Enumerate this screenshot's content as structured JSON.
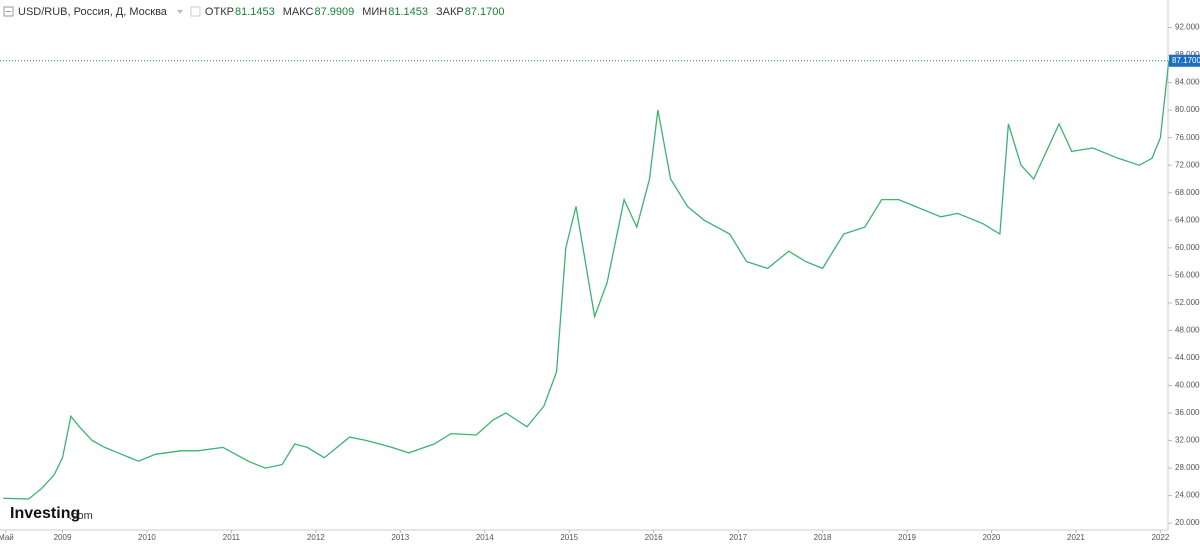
{
  "chart_data": {
    "type": "line",
    "title": "USD/RUB, Россия, Д, Москва",
    "header": [
      [
        "ОТКР",
        "81.1453"
      ],
      [
        "МАКС",
        "87.9909"
      ],
      [
        "МИН",
        "81.1453"
      ],
      [
        "ЗАКР",
        "87.1700"
      ]
    ],
    "watermark": [
      "Investing",
      ".com"
    ],
    "last": {
      "value": 87.17,
      "label": "87.1700"
    },
    "series": [
      {
        "name": "USD/RUB",
        "color": "#3cb371",
        "x": [
          2008.3,
          2008.6,
          2008.75,
          2008.9,
          2009.0,
          2009.1,
          2009.2,
          2009.35,
          2009.5,
          2009.7,
          2009.9,
          2010.1,
          2010.4,
          2010.6,
          2010.9,
          2011.2,
          2011.4,
          2011.6,
          2011.75,
          2011.9,
          2012.1,
          2012.4,
          2012.6,
          2012.9,
          2013.1,
          2013.4,
          2013.6,
          2013.9,
          2014.1,
          2014.25,
          2014.5,
          2014.7,
          2014.85,
          2014.96,
          2015.08,
          2015.3,
          2015.45,
          2015.65,
          2015.8,
          2015.95,
          2016.05,
          2016.2,
          2016.4,
          2016.6,
          2016.9,
          2017.1,
          2017.35,
          2017.6,
          2017.8,
          2018.0,
          2018.25,
          2018.5,
          2018.7,
          2018.9,
          2019.1,
          2019.4,
          2019.6,
          2019.9,
          2020.1,
          2020.2,
          2020.35,
          2020.5,
          2020.8,
          2020.95,
          2021.2,
          2021.5,
          2021.75,
          2021.9,
          2022.0,
          2022.1
        ],
        "values": [
          23.6,
          23.5,
          25,
          27,
          29.5,
          35.5,
          34,
          32,
          31,
          30,
          29,
          30,
          30.5,
          30.5,
          31,
          29,
          28,
          28.5,
          31.5,
          31,
          29.5,
          32.5,
          32,
          31,
          30.2,
          31.5,
          33,
          32.8,
          35,
          36,
          34,
          37,
          42,
          60,
          66,
          50,
          55,
          67,
          63,
          70,
          80,
          70,
          66,
          64,
          62,
          58,
          57,
          59.5,
          58,
          57,
          62,
          63,
          67,
          67,
          66,
          64.5,
          65,
          63.5,
          62,
          78,
          72,
          70,
          78,
          74,
          74.5,
          73,
          72,
          73,
          76,
          87.17
        ]
      }
    ],
    "xlim": [
      2008.26,
      2022.09
    ],
    "xticks": [
      {
        "value": 2008.33,
        "label": "Май"
      },
      2009,
      2010,
      2011,
      2012,
      2013,
      2014,
      2015,
      2016,
      2017,
      2018,
      2019,
      2020,
      2021,
      2022
    ],
    "ylim": [
      19,
      96
    ],
    "yticks": [
      {
        "value": 20,
        "label": "20.0000"
      },
      {
        "value": 24,
        "label": "24.0000"
      },
      {
        "value": 28,
        "label": "28.0000"
      },
      {
        "value": 32,
        "label": "32.0000"
      },
      {
        "value": 36,
        "label": "36.0000"
      },
      {
        "value": 40,
        "label": "40.0000"
      },
      {
        "value": 44,
        "label": "44.0000"
      },
      {
        "value": 48,
        "label": "48.0000"
      },
      {
        "value": 52,
        "label": "52.0000"
      },
      {
        "value": 56,
        "label": "56.0000"
      },
      {
        "value": 60,
        "label": "60.0000"
      },
      {
        "value": 64,
        "label": "64.0000"
      },
      {
        "value": 68,
        "label": "68.0000"
      },
      {
        "value": 72,
        "label": "72.0000"
      },
      {
        "value": 76,
        "label": "76.0000"
      },
      {
        "value": 80,
        "label": "80.0000"
      },
      {
        "value": 84,
        "label": "84.0000"
      },
      {
        "value": 88,
        "label": "88.0000"
      },
      {
        "value": 92,
        "label": "92.0000"
      }
    ],
    "grid": false
  }
}
